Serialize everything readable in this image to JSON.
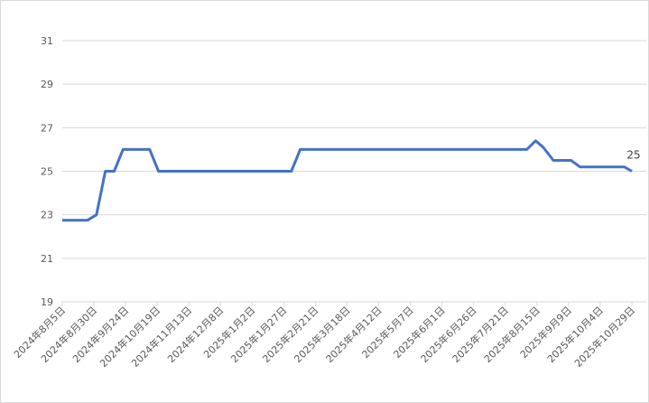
{
  "chart_data": {
    "type": "line",
    "x": [
      "2024-08-05",
      "2024-08-25",
      "2024-09-01",
      "2024-09-08",
      "2024-09-15",
      "2024-09-22",
      "2024-10-13",
      "2024-10-20",
      "2025-02-02",
      "2025-02-09",
      "2025-08-07",
      "2025-08-14",
      "2025-08-20",
      "2025-08-28",
      "2025-09-11",
      "2025-09-18",
      "2025-10-23",
      "2025-10-29"
    ],
    "series": [
      {
        "name": "value",
        "color": "#4472c4",
        "values": [
          22.75,
          22.75,
          23.0,
          25,
          25,
          26,
          26,
          25,
          25,
          26,
          26,
          26.4,
          26.1,
          25.5,
          25.5,
          25.2,
          25.2,
          25
        ]
      }
    ],
    "end_label": true,
    "xlim": [
      "2024-08-05",
      "2025-10-29"
    ],
    "xticks": [
      {
        "value": "2024-08-05",
        "label": "2024年8月5日"
      },
      {
        "value": "2024-08-30",
        "label": "2024年8月30日"
      },
      {
        "value": "2024-09-24",
        "label": "2024年9月24日"
      },
      {
        "value": "2024-10-19",
        "label": "2024年10月19日"
      },
      {
        "value": "2024-11-13",
        "label": "2024年11月13日"
      },
      {
        "value": "2024-12-08",
        "label": "2024年12月8日"
      },
      {
        "value": "2025-01-02",
        "label": "2025年1月2日"
      },
      {
        "value": "2025-01-27",
        "label": "2025年1月27日"
      },
      {
        "value": "2025-02-21",
        "label": "2025年2月21日"
      },
      {
        "value": "2025-03-18",
        "label": "2025年3月18日"
      },
      {
        "value": "2025-04-12",
        "label": "2025年4月12日"
      },
      {
        "value": "2025-05-07",
        "label": "2025年5月7日"
      },
      {
        "value": "2025-06-01",
        "label": "2025年6月1日"
      },
      {
        "value": "2025-06-26",
        "label": "2025年6月26日"
      },
      {
        "value": "2025-07-21",
        "label": "2025年7月21日"
      },
      {
        "value": "2025-08-15",
        "label": "2025年8月15日"
      },
      {
        "value": "2025-09-09",
        "label": "2025年9月9日"
      },
      {
        "value": "2025-10-04",
        "label": "2025年10月4日"
      },
      {
        "value": "2025-10-29",
        "label": "2025年10月29日"
      }
    ],
    "ylim": [
      19,
      31
    ],
    "yticks": [
      19,
      21,
      23,
      25,
      27,
      29,
      31
    ],
    "grid": true
  }
}
